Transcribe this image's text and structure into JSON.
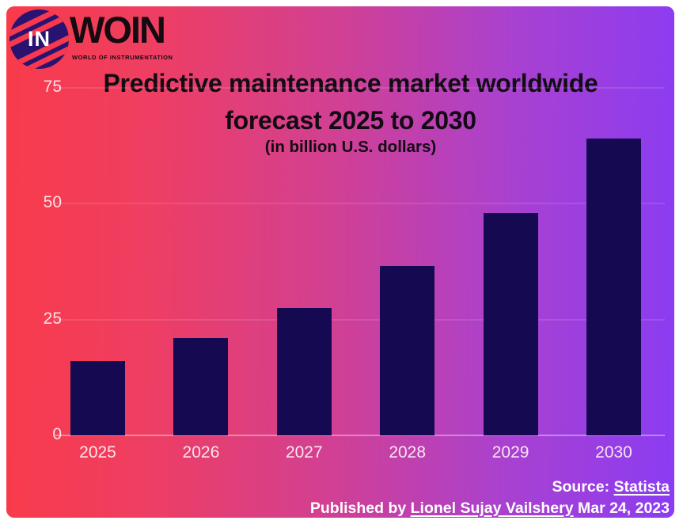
{
  "logo": {
    "monogram": "IN",
    "brand": "WOIN",
    "tagline": "WORLD OF INSTRUMENTATION"
  },
  "chart_data": {
    "type": "bar",
    "title": "Predictive maintenance market worldwide forecast 2025 to 2030",
    "title_lines": [
      "Predictive maintenance market worldwide",
      "forecast 2025 to 2030"
    ],
    "subtitle": "(in billion U.S. dollars)",
    "categories": [
      "2025",
      "2026",
      "2027",
      "2028",
      "2029",
      "2030"
    ],
    "values": [
      16,
      21,
      27.5,
      36.5,
      48,
      64
    ],
    "ylabel": "",
    "xlabel": "",
    "ylim": [
      0,
      75
    ],
    "yticks": [
      0,
      25,
      50,
      75
    ],
    "grid": "faint horizontal white lines at 25, 50, 75 and baseline at 0",
    "legend": "none",
    "bar_color": "#150a52"
  },
  "footer": {
    "source_prefix": "Source:",
    "source_link": "Statista",
    "published_prefix": "Published by",
    "published_link": "Lionel Sujay Vailshery",
    "published_date": "Mar 24, 2023"
  },
  "colors": {
    "gradient_left": "#f93b4a",
    "gradient_right": "#8b3cf2",
    "bar": "#150a52",
    "title_text": "#130b13",
    "axis_text": "#fdeef2",
    "footer_text": "#ffffff",
    "logo_circle": "#2a1270",
    "logo_stripe": "#f8394d"
  }
}
